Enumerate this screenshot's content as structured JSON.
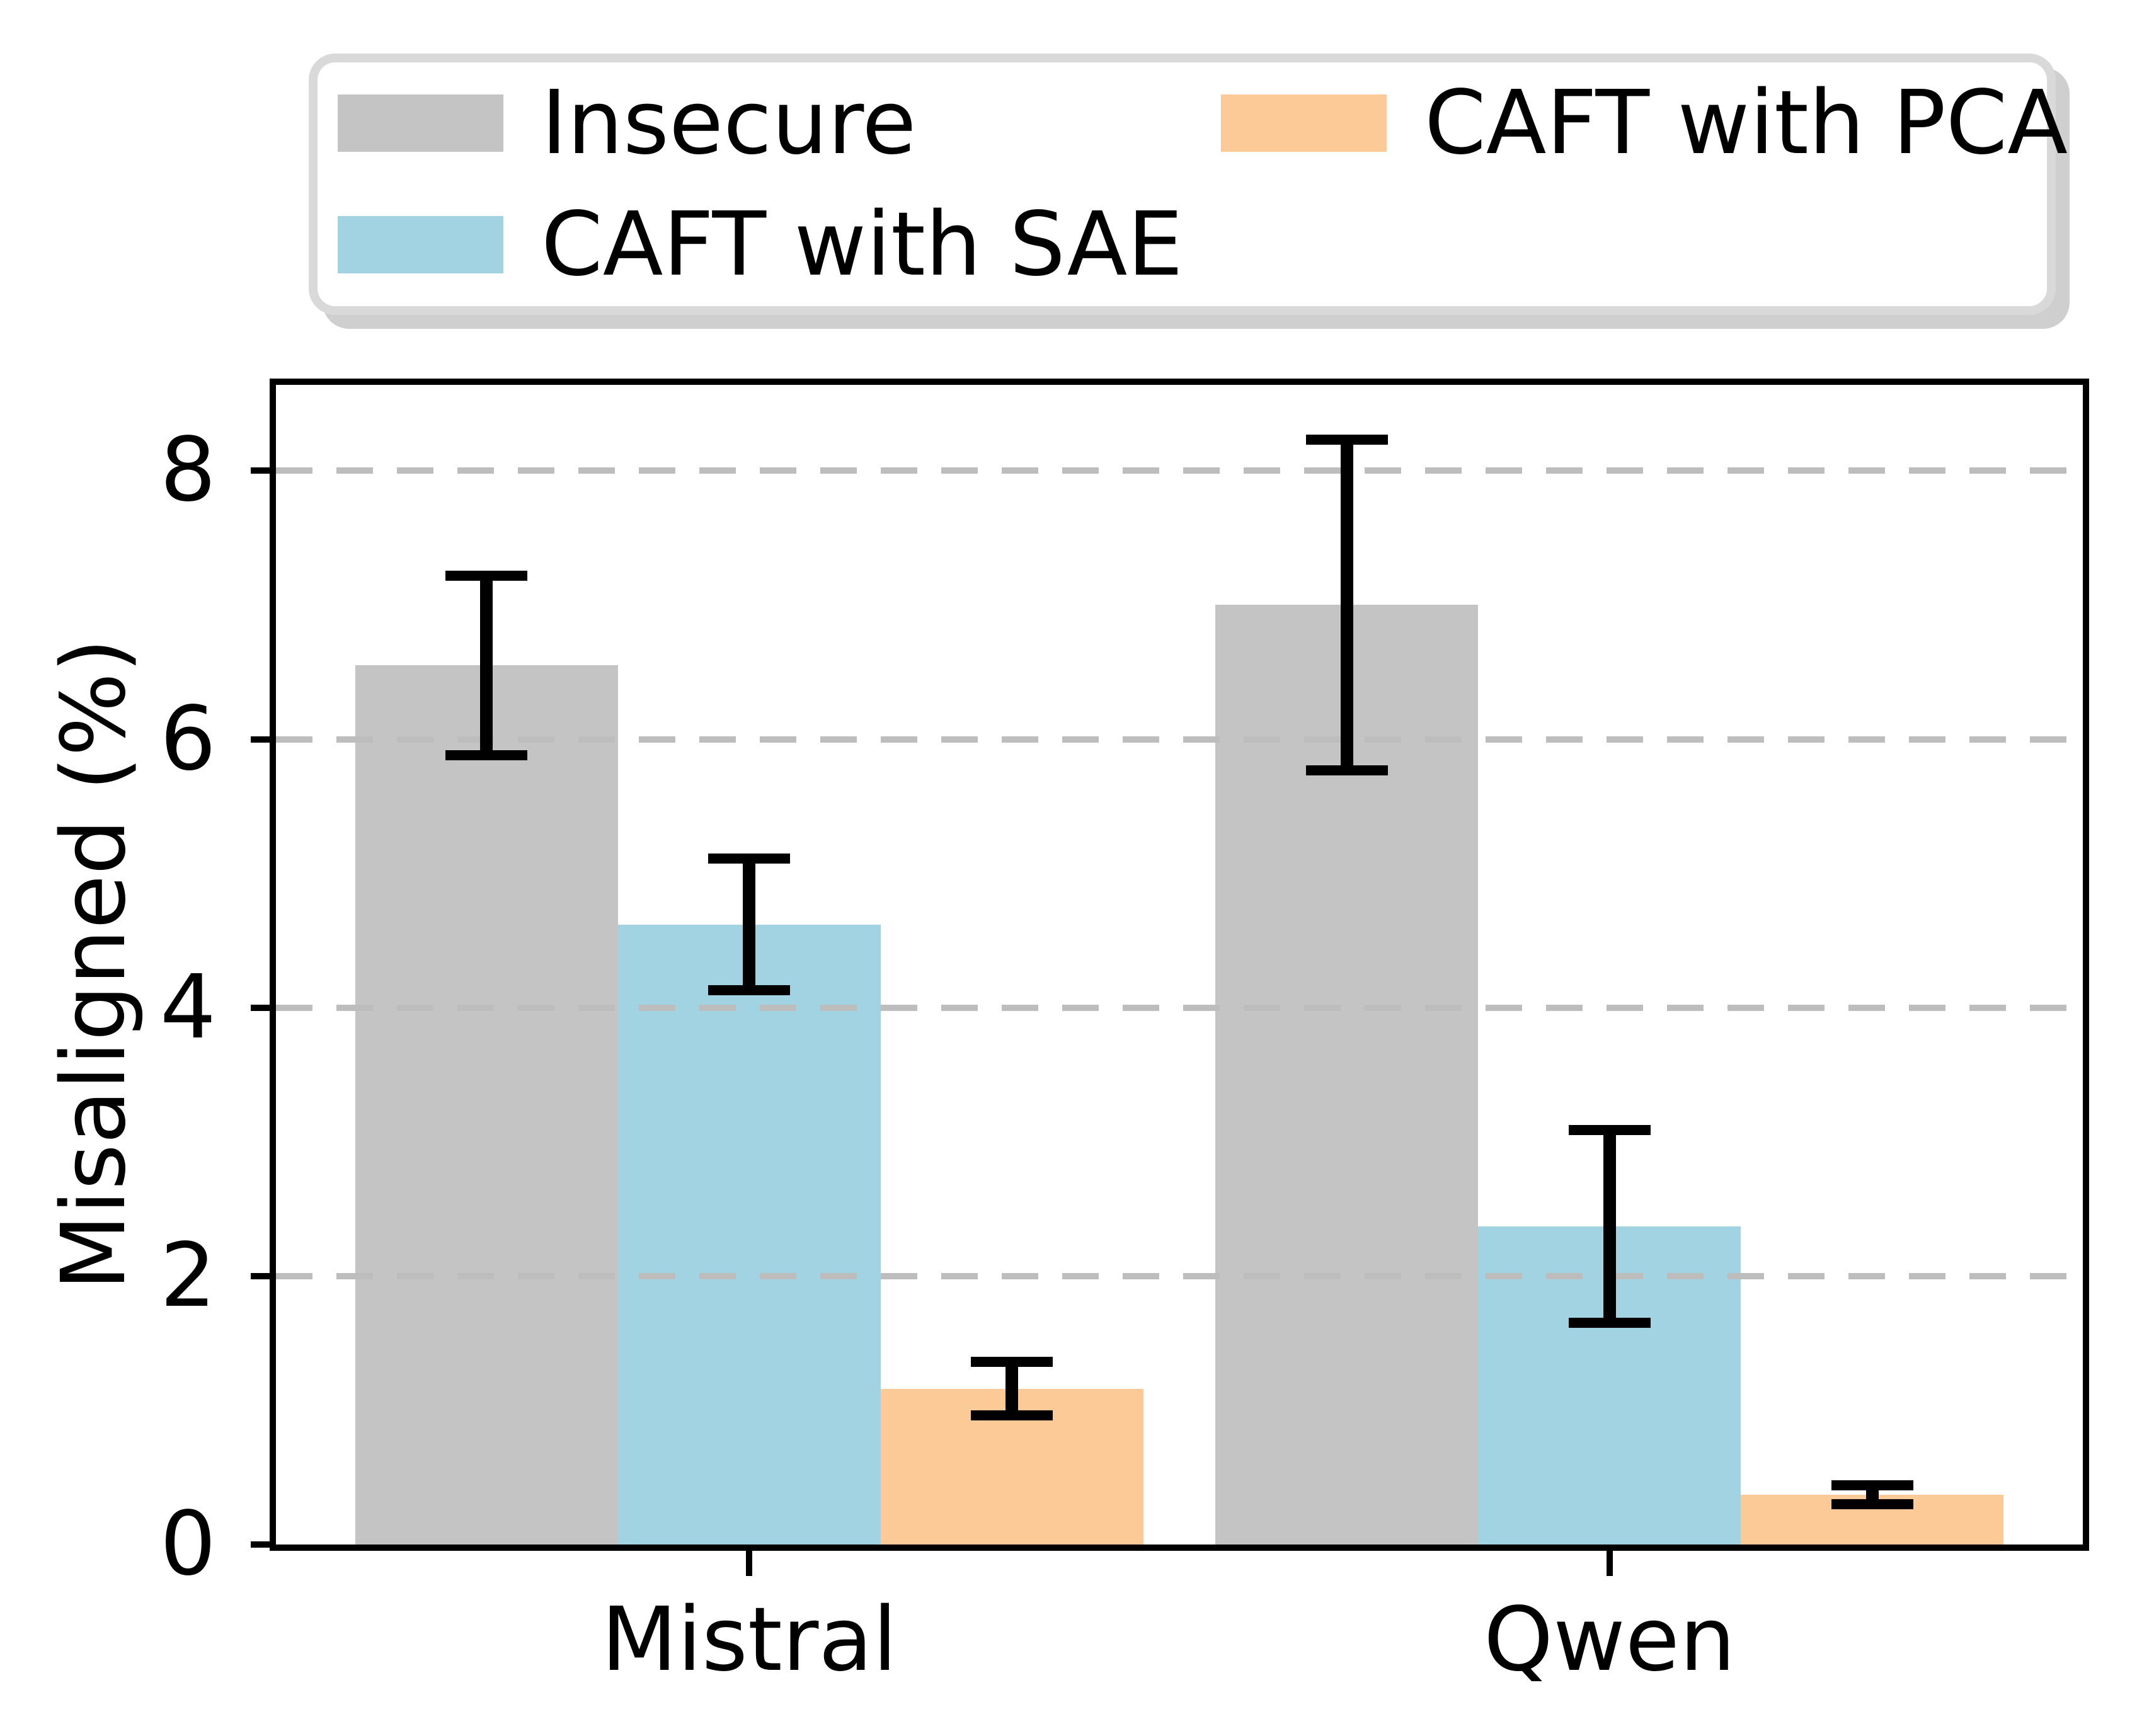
{
  "figure": {
    "background": "#ffffff"
  },
  "chart_data": {
    "type": "bar",
    "title": "",
    "categories": [
      "Mistral",
      "Qwen"
    ],
    "series": [
      {
        "name": "Insecure",
        "color": "#c4c4c4",
        "values": [
          6.55,
          7.0
        ],
        "errors": [
          0.67,
          1.23
        ]
      },
      {
        "name": "CAFT with SAE",
        "color": "#a1d3e2",
        "values": [
          4.62,
          2.37
        ],
        "errors": [
          0.49,
          0.72
        ]
      },
      {
        "name": "CAFT with PCA",
        "color": "#fcca96",
        "values": [
          1.16,
          0.37
        ],
        "errors": [
          0.2,
          0.07
        ]
      }
    ],
    "xlabel": "",
    "ylabel": "Misaligned (%)",
    "yticks": [
      0,
      2,
      4,
      6,
      8
    ],
    "ylim": [
      0,
      8.64
    ],
    "xlim": [
      -0.55,
      1.55
    ],
    "bar_width": 0.3053,
    "grid": "horizontal dashed gray, drawn above bars",
    "grid_color": "#bdbdbd",
    "error_color": "#000000",
    "legend_position": "top, outside axes, 2 columns",
    "legend_columns": [
      [
        "Insecure",
        "CAFT with SAE"
      ],
      [
        "CAFT with PCA"
      ]
    ]
  }
}
